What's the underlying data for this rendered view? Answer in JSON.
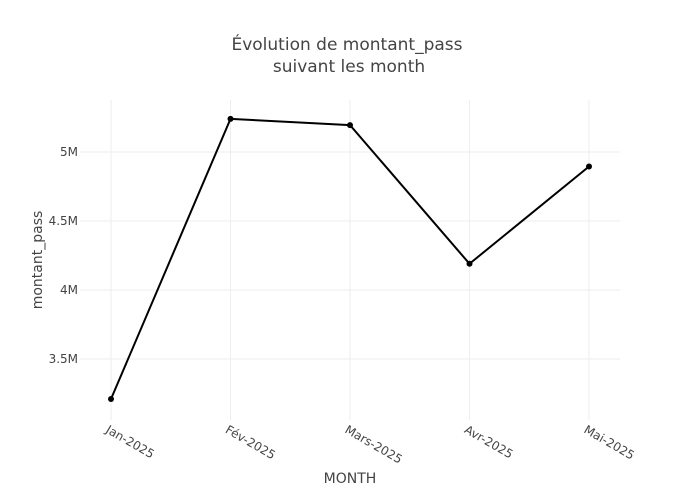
{
  "chart_data": {
    "type": "line",
    "title_lines": [
      "Évolution de montant_pass",
      "suivant les month"
    ],
    "xlabel": "MONTH",
    "ylabel": "montant_pass",
    "categories": [
      "Jan-2025",
      "Fév-2025",
      "Mars-2025",
      "Avr-2025",
      "Mai-2025"
    ],
    "values": [
      3210000,
      5240000,
      5195000,
      4190000,
      4895000
    ],
    "ylim": [
      3050000,
      5400000
    ],
    "yticks": [
      3500000,
      4000000,
      4500000,
      5000000
    ],
    "ytick_labels": [
      "3.5M",
      "4M",
      "4.5M",
      "5M"
    ],
    "grid": true,
    "line_color": "#000000",
    "grid_color": "#eeeeee",
    "text_color": "#444444"
  }
}
